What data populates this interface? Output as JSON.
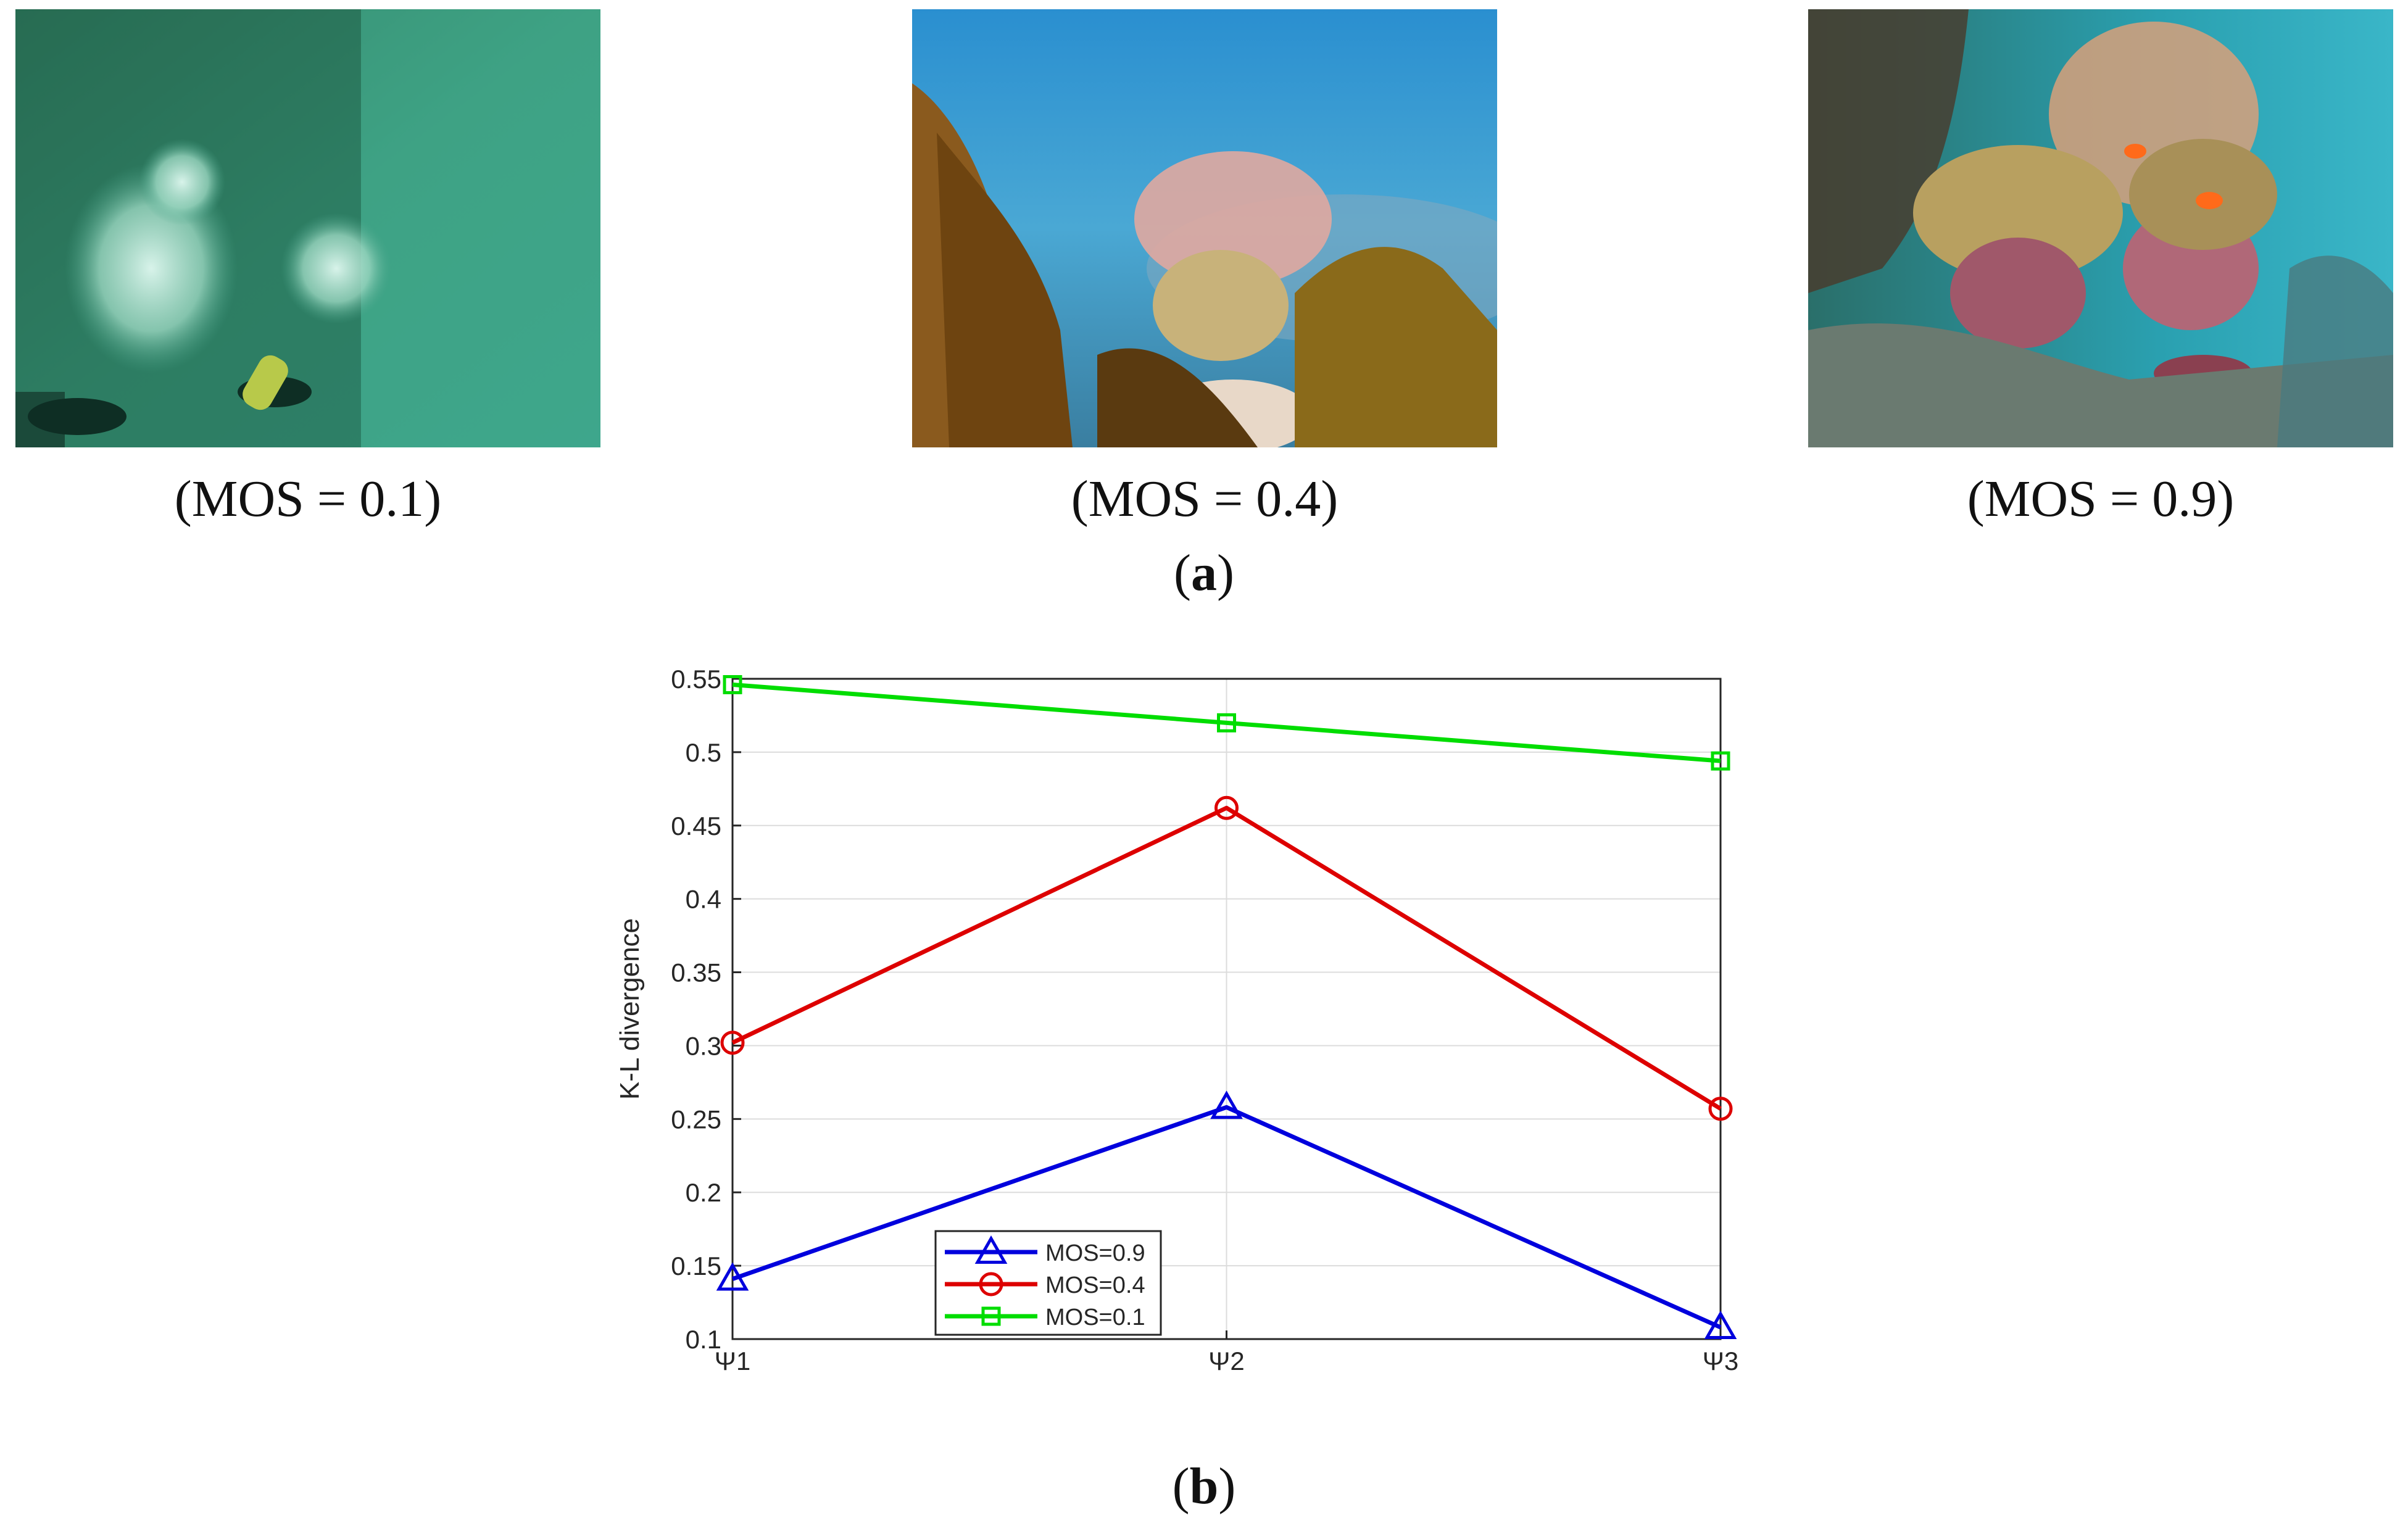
{
  "figure": {
    "panel_a": {
      "label_open": "(",
      "label_letter": "a",
      "label_close": ")",
      "images": [
        {
          "caption": "(MOS = 0.1)"
        },
        {
          "caption": "(MOS = 0.4)"
        },
        {
          "caption": "(MOS = 0.9)"
        }
      ]
    },
    "panel_b": {
      "label_open": "(",
      "label_letter": "b",
      "label_close": ")"
    }
  },
  "chart_data": {
    "type": "line",
    "title": "",
    "xlabel": "",
    "ylabel": "K-L divergence",
    "categories": [
      "Ψ1",
      "Ψ2",
      "Ψ3"
    ],
    "ylim": [
      0.1,
      0.55
    ],
    "yticks": [
      "0.1",
      "0.15",
      "0.2",
      "0.25",
      "0.3",
      "0.35",
      "0.4",
      "0.45",
      "0.5",
      "0.55"
    ],
    "grid": true,
    "legend_position": "bottom-left",
    "series": [
      {
        "name": "MOS=0.9",
        "values": [
          0.141,
          0.258,
          0.108
        ],
        "color": "#0000dd",
        "marker": "triangle"
      },
      {
        "name": "MOS=0.4",
        "values": [
          0.302,
          0.462,
          0.257
        ],
        "color": "#dd0000",
        "marker": "circle"
      },
      {
        "name": "MOS=0.1",
        "values": [
          0.546,
          0.52,
          0.494
        ],
        "color": "#00dd00",
        "marker": "square"
      }
    ]
  }
}
